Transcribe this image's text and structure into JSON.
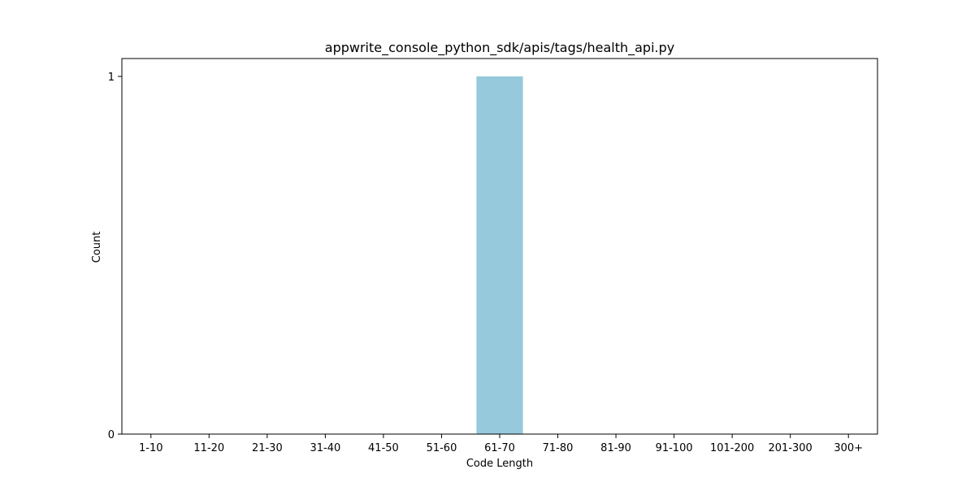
{
  "colors": {
    "bar": "#96c9dc",
    "axes": "#000000",
    "background": "#ffffff"
  },
  "chart_data": {
    "type": "bar",
    "title": "appwrite_console_python_sdk/apis/tags/health_api.py",
    "xlabel": "Code Length",
    "ylabel": "Count",
    "categories": [
      "1-10",
      "11-20",
      "21-30",
      "31-40",
      "41-50",
      "51-60",
      "61-70",
      "71-80",
      "81-90",
      "91-100",
      "101-200",
      "201-300",
      "300+"
    ],
    "values": [
      0,
      0,
      0,
      0,
      0,
      0,
      1,
      0,
      0,
      0,
      0,
      0,
      0
    ],
    "yticks": [
      0,
      1
    ],
    "ylim": [
      0,
      1.05
    ],
    "grid": false,
    "legend": "none"
  }
}
